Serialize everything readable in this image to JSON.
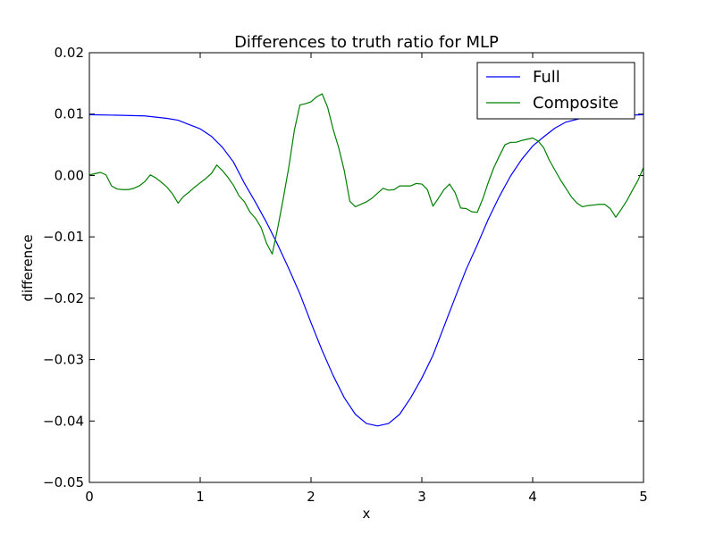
{
  "chart_data": {
    "type": "line",
    "title": "Differences to truth ratio for MLP",
    "xlabel": "x",
    "ylabel": "difference",
    "xlim": [
      0,
      5
    ],
    "ylim": [
      -0.05,
      0.02
    ],
    "xticks": [
      0,
      1,
      2,
      3,
      4,
      5
    ],
    "xtick_labels": [
      "0",
      "1",
      "2",
      "3",
      "4",
      "5"
    ],
    "yticks": [
      -0.05,
      -0.04,
      -0.03,
      -0.02,
      -0.01,
      0.0,
      0.01,
      0.02
    ],
    "ytick_labels": [
      "−0.05",
      "−0.04",
      "−0.03",
      "−0.02",
      "−0.01",
      "0.00",
      "0.01",
      "0.02"
    ],
    "grid": false,
    "legend_position": "top-right",
    "series": [
      {
        "name": "Full",
        "color": "#0000ff",
        "x": [
          0,
          0.3,
          0.5,
          0.7,
          0.8,
          0.9,
          1.0,
          1.1,
          1.2,
          1.3,
          1.4,
          1.5,
          1.6,
          1.7,
          1.8,
          1.9,
          2.0,
          2.1,
          2.2,
          2.3,
          2.4,
          2.5,
          2.6,
          2.7,
          2.8,
          2.9,
          3.0,
          3.1,
          3.2,
          3.3,
          3.4,
          3.5,
          3.6,
          3.7,
          3.8,
          3.9,
          4.0,
          4.1,
          4.2,
          4.3,
          4.5,
          5.0
        ],
        "y": [
          0.0099,
          0.0098,
          0.0097,
          0.0093,
          0.009,
          0.0083,
          0.0076,
          0.0064,
          0.0046,
          0.0022,
          -0.0013,
          -0.0044,
          -0.0077,
          -0.0113,
          -0.0152,
          -0.0193,
          -0.024,
          -0.0285,
          -0.0326,
          -0.0362,
          -0.0389,
          -0.0404,
          -0.0408,
          -0.0404,
          -0.0389,
          -0.0362,
          -0.033,
          -0.0293,
          -0.0246,
          -0.0199,
          -0.0153,
          -0.0113,
          -0.0071,
          -0.0034,
          -0.0001,
          0.0026,
          0.0048,
          0.0063,
          0.0077,
          0.0087,
          0.0096,
          0.0099
        ]
      },
      {
        "name": "Composite",
        "color": "#008000",
        "x": [
          0,
          0.05,
          0.1,
          0.15,
          0.2,
          0.25,
          0.3,
          0.35,
          0.4,
          0.45,
          0.5,
          0.55,
          0.6,
          0.65,
          0.7,
          0.75,
          0.8,
          0.85,
          0.9,
          0.95,
          1.0,
          1.05,
          1.1,
          1.15,
          1.2,
          1.25,
          1.3,
          1.35,
          1.4,
          1.45,
          1.5,
          1.55,
          1.6,
          1.65,
          1.7,
          1.75,
          1.8,
          1.85,
          1.9,
          1.95,
          2.0,
          2.05,
          2.1,
          2.15,
          2.2,
          2.25,
          2.3,
          2.35,
          2.4,
          2.45,
          2.5,
          2.55,
          2.6,
          2.65,
          2.7,
          2.75,
          2.8,
          2.85,
          2.9,
          2.95,
          3.0,
          3.05,
          3.1,
          3.15,
          3.2,
          3.25,
          3.3,
          3.35,
          3.4,
          3.45,
          3.5,
          3.55,
          3.6,
          3.65,
          3.7,
          3.75,
          3.8,
          3.85,
          3.9,
          3.95,
          4.0,
          4.05,
          4.1,
          4.15,
          4.2,
          4.25,
          4.3,
          4.35,
          4.4,
          4.45,
          4.5,
          4.55,
          4.6,
          4.65,
          4.7,
          4.75,
          4.8,
          4.85,
          4.9,
          4.95,
          5.0
        ],
        "y": [
          0.0001,
          0.0003,
          0.0005,
          0.0001,
          -0.0017,
          -0.0022,
          -0.0023,
          -0.0023,
          -0.0021,
          -0.0017,
          -0.001,
          0.0001,
          -0.0004,
          -0.0011,
          -0.0019,
          -0.003,
          -0.0045,
          -0.0034,
          -0.0027,
          -0.0019,
          -0.0012,
          -0.0005,
          0.0003,
          0.0017,
          0.0008,
          -0.0003,
          -0.0016,
          -0.0033,
          -0.0043,
          -0.006,
          -0.007,
          -0.0085,
          -0.0111,
          -0.0128,
          -0.0085,
          -0.0037,
          0.0014,
          0.0074,
          0.0115,
          0.0117,
          0.012,
          0.0128,
          0.0133,
          0.0111,
          0.0075,
          0.0045,
          0.0008,
          -0.0042,
          -0.0051,
          -0.0047,
          -0.0043,
          -0.0037,
          -0.0029,
          -0.0021,
          -0.0024,
          -0.0023,
          -0.0017,
          -0.0017,
          -0.0017,
          -0.0013,
          -0.0014,
          -0.0023,
          -0.005,
          -0.0037,
          -0.0023,
          -0.0014,
          -0.0028,
          -0.0053,
          -0.0054,
          -0.0059,
          -0.006,
          -0.0038,
          -0.0011,
          0.0013,
          0.0032,
          0.005,
          0.0054,
          0.0054,
          0.0057,
          0.0059,
          0.0061,
          0.0056,
          0.0045,
          0.0025,
          0.0009,
          -0.0007,
          -0.0021,
          -0.0035,
          -0.0045,
          -0.0051,
          -0.0049,
          -0.0048,
          -0.0047,
          -0.0047,
          -0.0054,
          -0.0068,
          -0.0055,
          -0.0041,
          -0.0024,
          -0.0008,
          0.0013
        ]
      }
    ]
  }
}
